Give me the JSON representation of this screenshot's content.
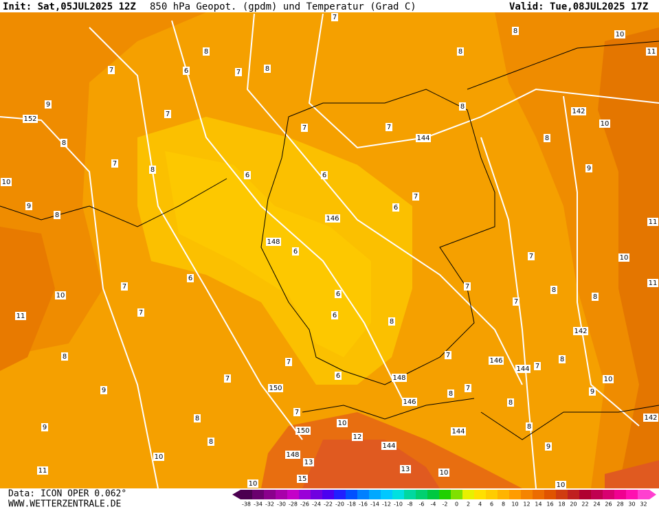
{
  "header": {
    "init": "Init: Sat,05JUL2025 12Z",
    "title": "850 hPa Geopot. (gpdm) und Temperatur (Grad C)",
    "valid": "Valid: Tue,08JUL2025 17Z"
  },
  "footer": {
    "data": "Data: ICON OPER 0.062°",
    "site": "WWW.WETTERZENTRALE.DE"
  },
  "colorbar": {
    "labels": [
      "-38",
      "-34",
      "-32",
      "-30",
      "-28",
      "-26",
      "-24",
      "-22",
      "-20",
      "-18",
      "-16",
      "-14",
      "-12",
      "-10",
      "-8",
      "-6",
      "-4",
      "-2",
      "0",
      "2",
      "4",
      "6",
      "8",
      "10",
      "12",
      "14",
      "16",
      "18",
      "20",
      "22",
      "24",
      "26",
      "28",
      "30",
      "32"
    ],
    "colors": [
      "#4b0050",
      "#6a006e",
      "#8a008c",
      "#a800aa",
      "#c400c8",
      "#9a00d8",
      "#7000e0",
      "#4c00f0",
      "#2020ff",
      "#0050ff",
      "#0080ff",
      "#00a8ff",
      "#00c8ff",
      "#00e0e0",
      "#00d8a0",
      "#00d070",
      "#00c840",
      "#20d000",
      "#80e000",
      "#e8f000",
      "#ffe000",
      "#ffcc00",
      "#ffb400",
      "#ff9c00",
      "#f58400",
      "#ec6c00",
      "#e05400",
      "#d03c10",
      "#c02020",
      "#b00030",
      "#c00050",
      "#d80070",
      "#f00090",
      "#ff10b0",
      "#ff40d0"
    ]
  },
  "map": {
    "labels": [
      "7",
      "8",
      "10",
      "11",
      "8",
      "8",
      "7",
      "6",
      "7",
      "8",
      "8",
      "9",
      "152",
      "142",
      "7",
      "7",
      "7",
      "10",
      "144",
      "8",
      "8",
      "7",
      "8",
      "9",
      "10",
      "6",
      "6",
      "7",
      "9",
      "8",
      "6",
      "146",
      "11",
      "148",
      "6",
      "7",
      "10",
      "6",
      "7",
      "7",
      "8",
      "11",
      "10",
      "6",
      "8",
      "7",
      "7",
      "6",
      "8",
      "11",
      "142",
      "8",
      "7",
      "146",
      "7",
      "144",
      "7",
      "8",
      "7",
      "6",
      "148",
      "10",
      "9",
      "150",
      "146",
      "8",
      "7",
      "9",
      "7",
      "8",
      "8",
      "142",
      "9",
      "10",
      "8",
      "150",
      "12",
      "144",
      "8",
      "144",
      "9",
      "148",
      "13",
      "10",
      "11",
      "15",
      "13",
      "10",
      "10",
      "10"
    ]
  }
}
